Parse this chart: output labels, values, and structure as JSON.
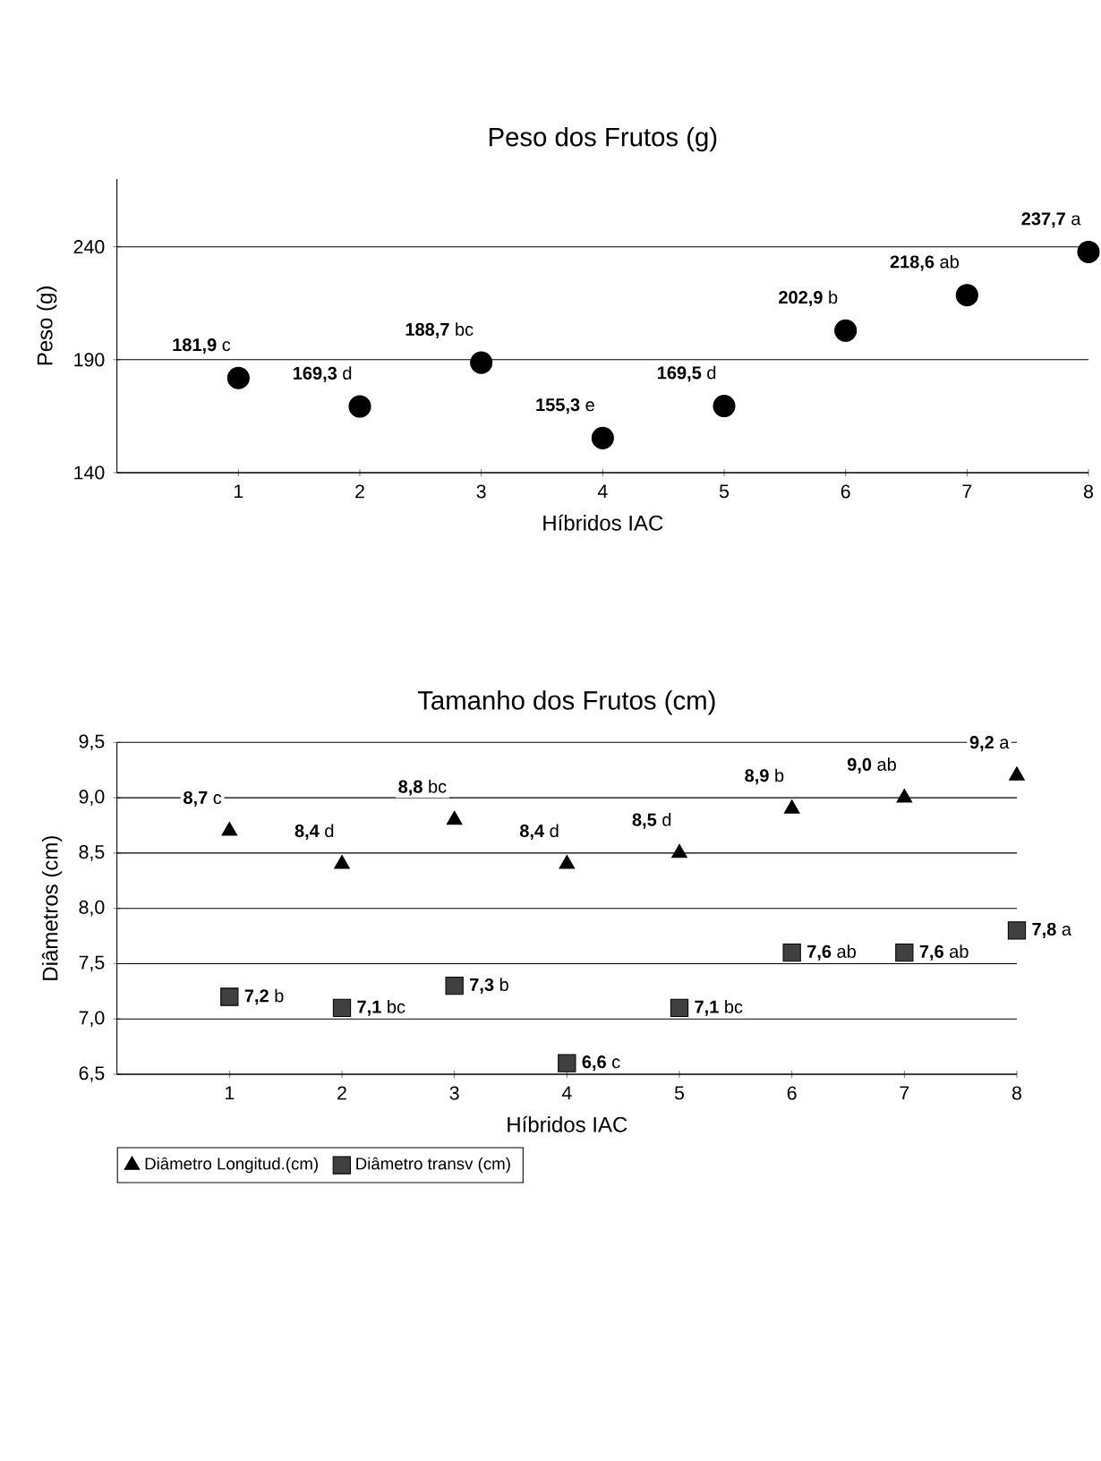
{
  "chart_data": [
    {
      "type": "scatter",
      "title": "Peso dos Frutos (g)",
      "xlabel": "Híbridos IAC",
      "ylabel": "Peso (g)",
      "xlim": [
        0,
        8
      ],
      "xticks": [
        1,
        2,
        3,
        4,
        5,
        6,
        7,
        8
      ],
      "ylim": [
        140,
        270
      ],
      "yticks": [
        140,
        190,
        240
      ],
      "grid": "y",
      "marker": "circle",
      "x": [
        1,
        2,
        3,
        4,
        5,
        6,
        7,
        8
      ],
      "series": [
        {
          "color": "#000000",
          "values": [
            181.9,
            169.3,
            188.7,
            155.3,
            169.5,
            202.9,
            218.6,
            237.7
          ],
          "value_labels": [
            "**181,9** c",
            "**169,3** d",
            "**188,7** bc",
            "**155,3** e",
            "**169,5** d",
            "**202,9** b",
            "**218,6** ab",
            "**237,7** a"
          ]
        }
      ]
    },
    {
      "type": "scatter",
      "title": "Tamanho dos Frutos (cm)",
      "xlabel": "Híbridos IAC",
      "ylabel": "Diâmetros (cm)",
      "xlim": [
        0,
        8
      ],
      "xticks": [
        1,
        2,
        3,
        4,
        5,
        6,
        7,
        8
      ],
      "ylim": [
        6.5,
        9.5
      ],
      "yticks": [
        {
          "value": 6.5,
          "label": "6,5"
        },
        {
          "value": 7.0,
          "label": "7,0"
        },
        {
          "value": 7.5,
          "label": "7,5"
        },
        {
          "value": 8.0,
          "label": "8,0"
        },
        {
          "value": 8.5,
          "label": "8,5"
        },
        {
          "value": 9.0,
          "label": "9,0"
        },
        {
          "value": 9.5,
          "label": "9,5"
        }
      ],
      "grid": "y",
      "legend": "bottom left",
      "x": [
        1,
        2,
        3,
        4,
        5,
        6,
        7,
        8
      ],
      "series": [
        {
          "name": "Diâmetro Longitud.(cm)",
          "color": "#000000",
          "marker": "triangle",
          "values": [
            8.7,
            8.4,
            8.8,
            8.4,
            8.5,
            8.9,
            9.0,
            9.2
          ],
          "value_labels": [
            "**8,7** c",
            "**8,4** d",
            "**8,8** bc",
            "**8,4** d",
            "**8,5** d",
            "**8,9** b",
            "**9,0** ab",
            "**9,2** a"
          ]
        },
        {
          "name": "Diâmetro transv  (cm)",
          "color": "#404040",
          "marker": "square",
          "values": [
            7.2,
            7.1,
            7.3,
            6.6,
            7.1,
            7.6,
            7.6,
            7.8
          ],
          "value_labels": [
            "**7,2** b",
            "**7,1** bc",
            "**7,3** b",
            "**6,6** c",
            "**7,1** bc",
            "**7,6** ab",
            "**7,6** ab",
            "**7,8** a"
          ]
        }
      ]
    }
  ]
}
